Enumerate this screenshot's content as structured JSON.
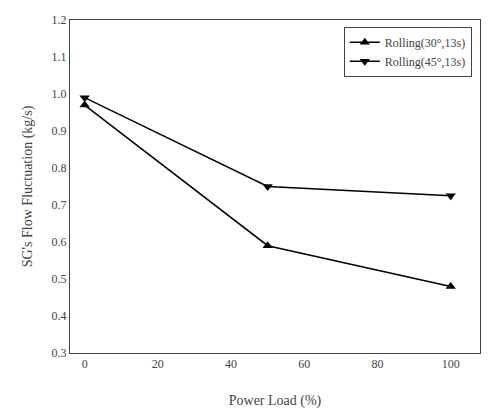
{
  "chart_data": {
    "type": "line",
    "x": [
      0,
      50,
      100
    ],
    "series": [
      {
        "name": "Rolling(30°,13s)",
        "color": "black",
        "marker": "triangle-up",
        "values": [
          0.97,
          0.59,
          0.48
        ]
      },
      {
        "name": "Rolling(45°,13s)",
        "color": "black",
        "marker": "triangle-down",
        "values": [
          0.99,
          0.75,
          0.725
        ]
      }
    ],
    "xlabel": "Power Load (%)",
    "ylabel": "SG's Flow Fluctuation (kg/s)",
    "xlim": [
      -4,
      108
    ],
    "ylim": [
      0.3,
      1.2
    ],
    "xticks": [
      0,
      20,
      40,
      60,
      80,
      100
    ],
    "yticks": [
      0.3,
      0.4,
      0.5,
      0.6,
      0.7,
      0.8,
      0.9,
      {
        "value": 1,
        "label": "1.0"
      },
      1.1,
      1.2
    ],
    "legend": "upper right",
    "grid": false
  }
}
